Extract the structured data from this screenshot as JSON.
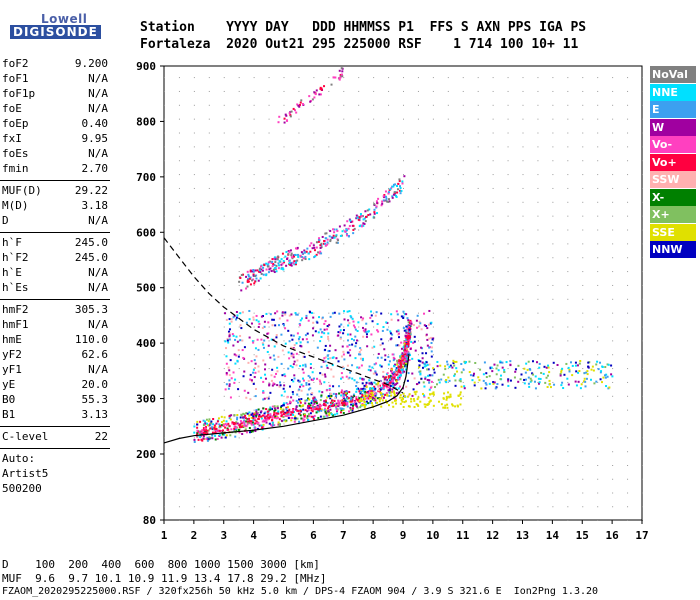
{
  "logo": {
    "line1": "Lowell",
    "line2": "DIGISONDE"
  },
  "header": {
    "row1": "Station    YYYY DAY   DDD HHMMSS P1  FFS S AXN PPS IGA PS",
    "row2": "Fortaleza  2020 Out21 295 225000 RSF    1 714 100 10+ 11"
  },
  "params": [
    [
      {
        "name": "foF2",
        "value": "9.200"
      },
      {
        "name": "foF1",
        "value": "N/A"
      },
      {
        "name": "foF1p",
        "value": "N/A"
      },
      {
        "name": "foE",
        "value": "N/A"
      },
      {
        "name": "foEp",
        "value": "0.40"
      },
      {
        "name": "fxI",
        "value": "9.95"
      },
      {
        "name": "foEs",
        "value": "N/A"
      },
      {
        "name": "fmin",
        "value": "2.70"
      }
    ],
    [
      {
        "name": "MUF(D)",
        "value": "29.22"
      },
      {
        "name": "M(D)",
        "value": "3.18"
      },
      {
        "name": "D",
        "value": "N/A"
      }
    ],
    [
      {
        "name": "h`F",
        "value": "245.0"
      },
      {
        "name": "h`F2",
        "value": "245.0"
      },
      {
        "name": "h`E",
        "value": "N/A"
      },
      {
        "name": "h`Es",
        "value": "N/A"
      }
    ],
    [
      {
        "name": "hmF2",
        "value": "305.3"
      },
      {
        "name": "hmF1",
        "value": "N/A"
      },
      {
        "name": "hmE",
        "value": "110.0"
      },
      {
        "name": "yF2",
        "value": "62.6"
      },
      {
        "name": "yF1",
        "value": "N/A"
      },
      {
        "name": "yE",
        "value": "20.0"
      },
      {
        "name": "B0",
        "value": "55.3"
      },
      {
        "name": "B1",
        "value": "3.13"
      }
    ],
    [
      {
        "name": "C-level",
        "value": "22"
      }
    ]
  ],
  "auto": {
    "line1": "Auto:",
    "line2": "Artist5",
    "line3": "500200"
  },
  "footer": {
    "d_row": "D    100  200  400  600  800 1000 1500 3000 [km]",
    "muf_row": "MUF  9.6  9.7 10.1 10.9 11.9 13.4 17.8 29.2 [MHz]",
    "file_row": "FZAOM_2020295225000.RSF / 320fx256h 50 kHz 5.0 km / DPS-4 FZAOM 904 / 3.9 S 321.6 E  Ion2Png 1.3.20"
  },
  "chart_data": {
    "type": "scatter",
    "xlim": [
      1,
      17
    ],
    "ylim": [
      80,
      900
    ],
    "x_ticks": [
      1,
      2,
      3,
      4,
      5,
      6,
      7,
      8,
      9,
      10,
      11,
      12,
      13,
      14,
      15,
      16,
      17
    ],
    "y_ticks": [
      80,
      200,
      300,
      400,
      500,
      600,
      700,
      800,
      900
    ],
    "grid": true,
    "legend_position": "right",
    "legend": [
      {
        "name": "NoVal",
        "color": "#808080",
        "text": "#ffffff"
      },
      {
        "name": "NNE",
        "color": "#00e0ff",
        "text": "#ffffff"
      },
      {
        "name": "E",
        "color": "#3ca0f0",
        "text": "#ffffff"
      },
      {
        "name": "W",
        "color": "#a000a0",
        "text": "#ffffff"
      },
      {
        "name": "Vo-",
        "color": "#ff40c0",
        "text": "#ffffff"
      },
      {
        "name": "Vo+",
        "color": "#ff0040",
        "text": "#ffffff"
      },
      {
        "name": "SSW",
        "color": "#ffb0b0",
        "text": "#ffffff"
      },
      {
        "name": "X-",
        "color": "#008000",
        "text": "#ffffff"
      },
      {
        "name": "X+",
        "color": "#80c060",
        "text": "#ffffff"
      },
      {
        "name": "SSE",
        "color": "#e0e000",
        "text": "#ffffff"
      },
      {
        "name": "NNW",
        "color": "#0000c0",
        "text": "#ffffff"
      }
    ],
    "trace_points": [
      [
        2.0,
        240
      ],
      [
        2.5,
        245
      ],
      [
        3.0,
        250
      ],
      [
        3.5,
        255
      ],
      [
        4.0,
        262
      ],
      [
        4.5,
        268
      ],
      [
        5.0,
        275
      ],
      [
        5.5,
        280
      ],
      [
        6.0,
        285
      ],
      [
        6.5,
        290
      ],
      [
        7.0,
        295
      ],
      [
        7.5,
        302
      ],
      [
        8.0,
        312
      ],
      [
        8.5,
        330
      ],
      [
        8.8,
        350
      ],
      [
        9.0,
        375
      ],
      [
        9.1,
        400
      ],
      [
        9.2,
        430
      ]
    ],
    "high_trace_points": [
      [
        3.5,
        510
      ],
      [
        4.0,
        525
      ],
      [
        4.5,
        540
      ],
      [
        5.0,
        550
      ],
      [
        5.5,
        560
      ],
      [
        6.0,
        570
      ],
      [
        6.5,
        590
      ],
      [
        7.0,
        605
      ],
      [
        7.5,
        620
      ],
      [
        8.0,
        640
      ],
      [
        8.5,
        665
      ],
      [
        9.0,
        690
      ]
    ],
    "upper_trace_points": [
      [
        4.8,
        800
      ],
      [
        5.2,
        815
      ],
      [
        5.6,
        835
      ],
      [
        6.0,
        850
      ],
      [
        6.4,
        865
      ],
      [
        6.8,
        880
      ],
      [
        7.0,
        895
      ]
    ],
    "profile_curve": [
      [
        1.0,
        590
      ],
      [
        1.5,
        555
      ],
      [
        2.0,
        520
      ],
      [
        2.5,
        490
      ],
      [
        3.0,
        465
      ],
      [
        3.5,
        445
      ],
      [
        4.0,
        425
      ],
      [
        4.5,
        410
      ],
      [
        5.0,
        395
      ],
      [
        5.5,
        385
      ],
      [
        6.0,
        375
      ],
      [
        6.5,
        365
      ],
      [
        7.0,
        355
      ],
      [
        7.5,
        345
      ],
      [
        8.0,
        335
      ],
      [
        8.5,
        325
      ],
      [
        9.0,
        310
      ]
    ],
    "virtual_height_curve": [
      [
        1.0,
        220
      ],
      [
        1.5,
        228
      ],
      [
        2.0,
        233
      ],
      [
        3.0,
        238
      ],
      [
        4.0,
        243
      ],
      [
        5.0,
        250
      ],
      [
        6.0,
        260
      ],
      [
        7.0,
        270
      ],
      [
        8.0,
        285
      ],
      [
        8.5,
        295
      ],
      [
        8.8,
        305
      ],
      [
        9.0,
        320
      ],
      [
        9.1,
        340
      ],
      [
        9.2,
        380
      ]
    ]
  }
}
